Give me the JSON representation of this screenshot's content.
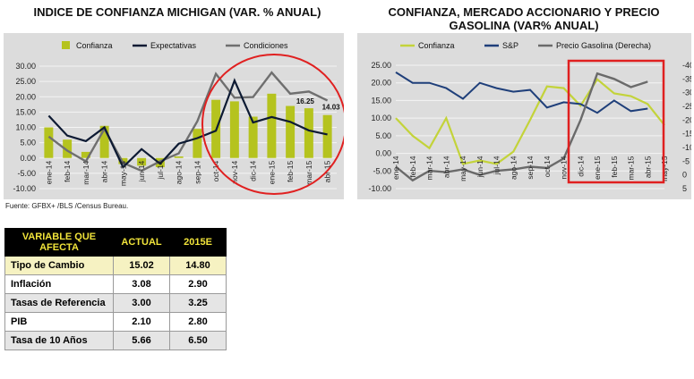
{
  "left_title": "INDICE DE CONFIANZA MICHIGAN (VAR. % ANUAL)",
  "right_title_line1": "CONFIANZA, MERCADO ACCIONARIO Y PRECIO",
  "right_title_line2": "GASOLINA (VAR% ANUAL)",
  "source": "Fuente: GFBX+ /BLS /Census Bureau.",
  "colors": {
    "confianza_bar": "#b5c31e",
    "expectativas": "#0d1a33",
    "condiciones": "#6f6f6f",
    "sp": "#1f3f7a",
    "gasolina": "#6a6a6a",
    "confianza_line": "#c3d33a",
    "highlight": "#e02020",
    "panel": "#dcdcdc"
  },
  "chart_data": [
    {
      "type": "bar",
      "title": "INDICE DE CONFIANZA MICHIGAN (VAR. % ANUAL)",
      "categories": [
        "ene-14",
        "feb-14",
        "mar-14",
        "abr-14",
        "may-14",
        "jun-14",
        "jul-14",
        "ago-14",
        "sep-14",
        "oct-14",
        "nov-14",
        "dic-14",
        "ene-15",
        "feb-15",
        "mar-15",
        "abr-15"
      ],
      "ylim": [
        -10,
        30
      ],
      "yticks": [
        "-10.00",
        "-5.00",
        "0.00",
        "5.00",
        "10.00",
        "15.00",
        "20.00",
        "25.00",
        "30.00"
      ],
      "legend_position": "top",
      "series": [
        {
          "name": "Confianza",
          "kind": "bar",
          "values": [
            10.0,
            6.0,
            2.0,
            10.5,
            -2.0,
            -2.5,
            -3.0,
            0.5,
            9.5,
            19.0,
            18.5,
            13.5,
            21.0,
            17.0,
            16.25,
            14.03
          ]
        },
        {
          "name": "Expectativas",
          "kind": "line",
          "values": [
            13.8,
            7.3,
            5.5,
            10.0,
            -3.0,
            2.9,
            -1.9,
            4.7,
            6.5,
            8.9,
            25.3,
            11.6,
            13.4,
            11.8,
            9.0,
            7.7
          ]
        },
        {
          "name": "Condiciones",
          "kind": "line",
          "values": [
            7.0,
            2.4,
            -1.1,
            9.5,
            -1.6,
            -4.2,
            -1.1,
            1.5,
            12.0,
            27.5,
            19.7,
            19.9,
            27.9,
            21.0,
            21.7,
            18.8
          ]
        }
      ],
      "annotations": [
        "16.25",
        "14.03"
      ]
    },
    {
      "type": "line",
      "title": "CONFIANZA, MERCADO ACCIONARIO Y PRECIO GASOLINA (VAR% ANUAL)",
      "categories": [
        "ene-14",
        "feb-14",
        "mar-14",
        "abr-14",
        "may-14",
        "jun-14",
        "jul-14",
        "ago-14",
        "sep-14",
        "oct-14",
        "nov-14",
        "dic-14",
        "ene-15",
        "feb-15",
        "mar-15",
        "abr-15",
        "may-15"
      ],
      "ylim": [
        -10,
        25
      ],
      "y2lim": [
        -40,
        5
      ],
      "yticks": [
        "-10.00",
        "-5.00",
        "0.00",
        "5.00",
        "10.00",
        "15.00",
        "20.00",
        "25.00"
      ],
      "y2ticks": [
        "-40",
        "-35",
        "-30",
        "-25",
        "-20",
        "-15",
        "-10",
        "-5",
        "0",
        "5"
      ],
      "legend_position": "top",
      "series": [
        {
          "name": "Confianza",
          "axis": "left",
          "values": [
            10.0,
            5.0,
            1.5,
            10.0,
            -3.0,
            -2.0,
            -3.0,
            0.5,
            9.5,
            19.0,
            18.5,
            13.5,
            21.0,
            17.0,
            16.25,
            14.0,
            8.0
          ]
        },
        {
          "name": "S&P",
          "axis": "left",
          "values": [
            23.0,
            20.0,
            20.0,
            18.5,
            15.5,
            20.0,
            18.5,
            17.5,
            18.0,
            13.0,
            14.5,
            14.0,
            11.5,
            15.0,
            12.0,
            12.7,
            null
          ]
        },
        {
          "name": "Precio Gasolina (Derecha)",
          "axis": "right",
          "values": [
            -3.0,
            2.0,
            -1.5,
            -1.0,
            -2.0,
            0.0,
            -1.5,
            -2.0,
            -3.0,
            -2.5,
            -6.0,
            -20.0,
            -37.0,
            -35.0,
            -32.0,
            -34.0,
            null
          ]
        }
      ]
    }
  ],
  "table": {
    "headers": [
      "VARIABLE QUE AFECTA",
      "ACTUAL",
      "2015E"
    ],
    "rows": [
      {
        "label": "Tipo de Cambio",
        "actual": "15.02",
        "est": "14.80"
      },
      {
        "label": "Inflación",
        "actual": "3.08",
        "est": "2.90"
      },
      {
        "label": "Tasas de Referencia",
        "actual": "3.00",
        "est": "3.25"
      },
      {
        "label": "PIB",
        "actual": "2.10",
        "est": "2.80"
      },
      {
        "label": "Tasa de 10 Años",
        "actual": "5.66",
        "est": "6.50"
      }
    ]
  }
}
